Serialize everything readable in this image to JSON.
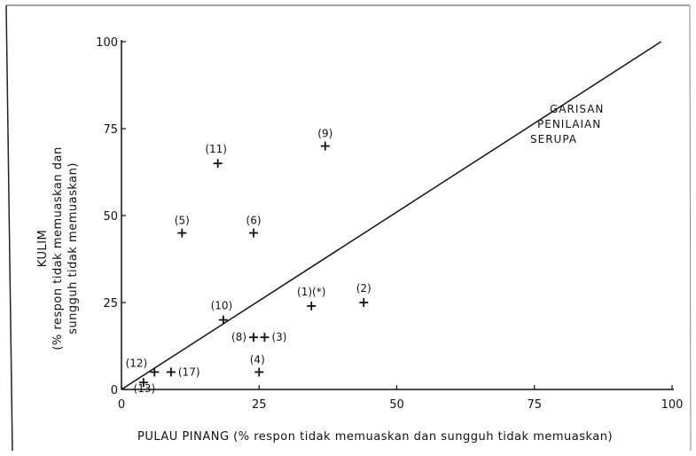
{
  "chart_data": {
    "type": "scatter",
    "xlabel": "PULAU PINANG (% respon tidak memuaskan dan sungguh tidak memuaskan)",
    "ylabel_line1": "KULIM",
    "ylabel_line2": "(% respon tidak memuaskan dan",
    "ylabel_line3": "sungguh tidak memuaskan)",
    "xlim": [
      0,
      100
    ],
    "ylim": [
      0,
      100
    ],
    "xticks": [
      "0",
      "25",
      "50",
      "75",
      "100"
    ],
    "yticks": [
      "0",
      "25",
      "50",
      "75",
      "100"
    ],
    "grid": false,
    "reference_line": {
      "from": [
        0,
        0
      ],
      "to": [
        98,
        100
      ],
      "label_lines": [
        "GARISAN",
        "PENILAIAN",
        "SERUPA"
      ]
    },
    "points": [
      {
        "label": "(1)(*)",
        "x": 34.5,
        "y": 24
      },
      {
        "label": "(2)",
        "x": 44,
        "y": 25
      },
      {
        "label": "(3)",
        "x": 26,
        "y": 15
      },
      {
        "label": "(4)",
        "x": 25,
        "y": 5
      },
      {
        "label": "(5)",
        "x": 11,
        "y": 45
      },
      {
        "label": "(6)",
        "x": 24,
        "y": 45
      },
      {
        "label": "(8)",
        "x": 24,
        "y": 15
      },
      {
        "label": "(9)",
        "x": 37,
        "y": 70
      },
      {
        "label": "(10)",
        "x": 18.5,
        "y": 20
      },
      {
        "label": "(11)",
        "x": 17.5,
        "y": 65
      },
      {
        "label": "(12)",
        "x": 6,
        "y": 5
      },
      {
        "label": "(13)",
        "x": 4,
        "y": 2
      },
      {
        "label": "(17)",
        "x": 9,
        "y": 5
      }
    ]
  }
}
